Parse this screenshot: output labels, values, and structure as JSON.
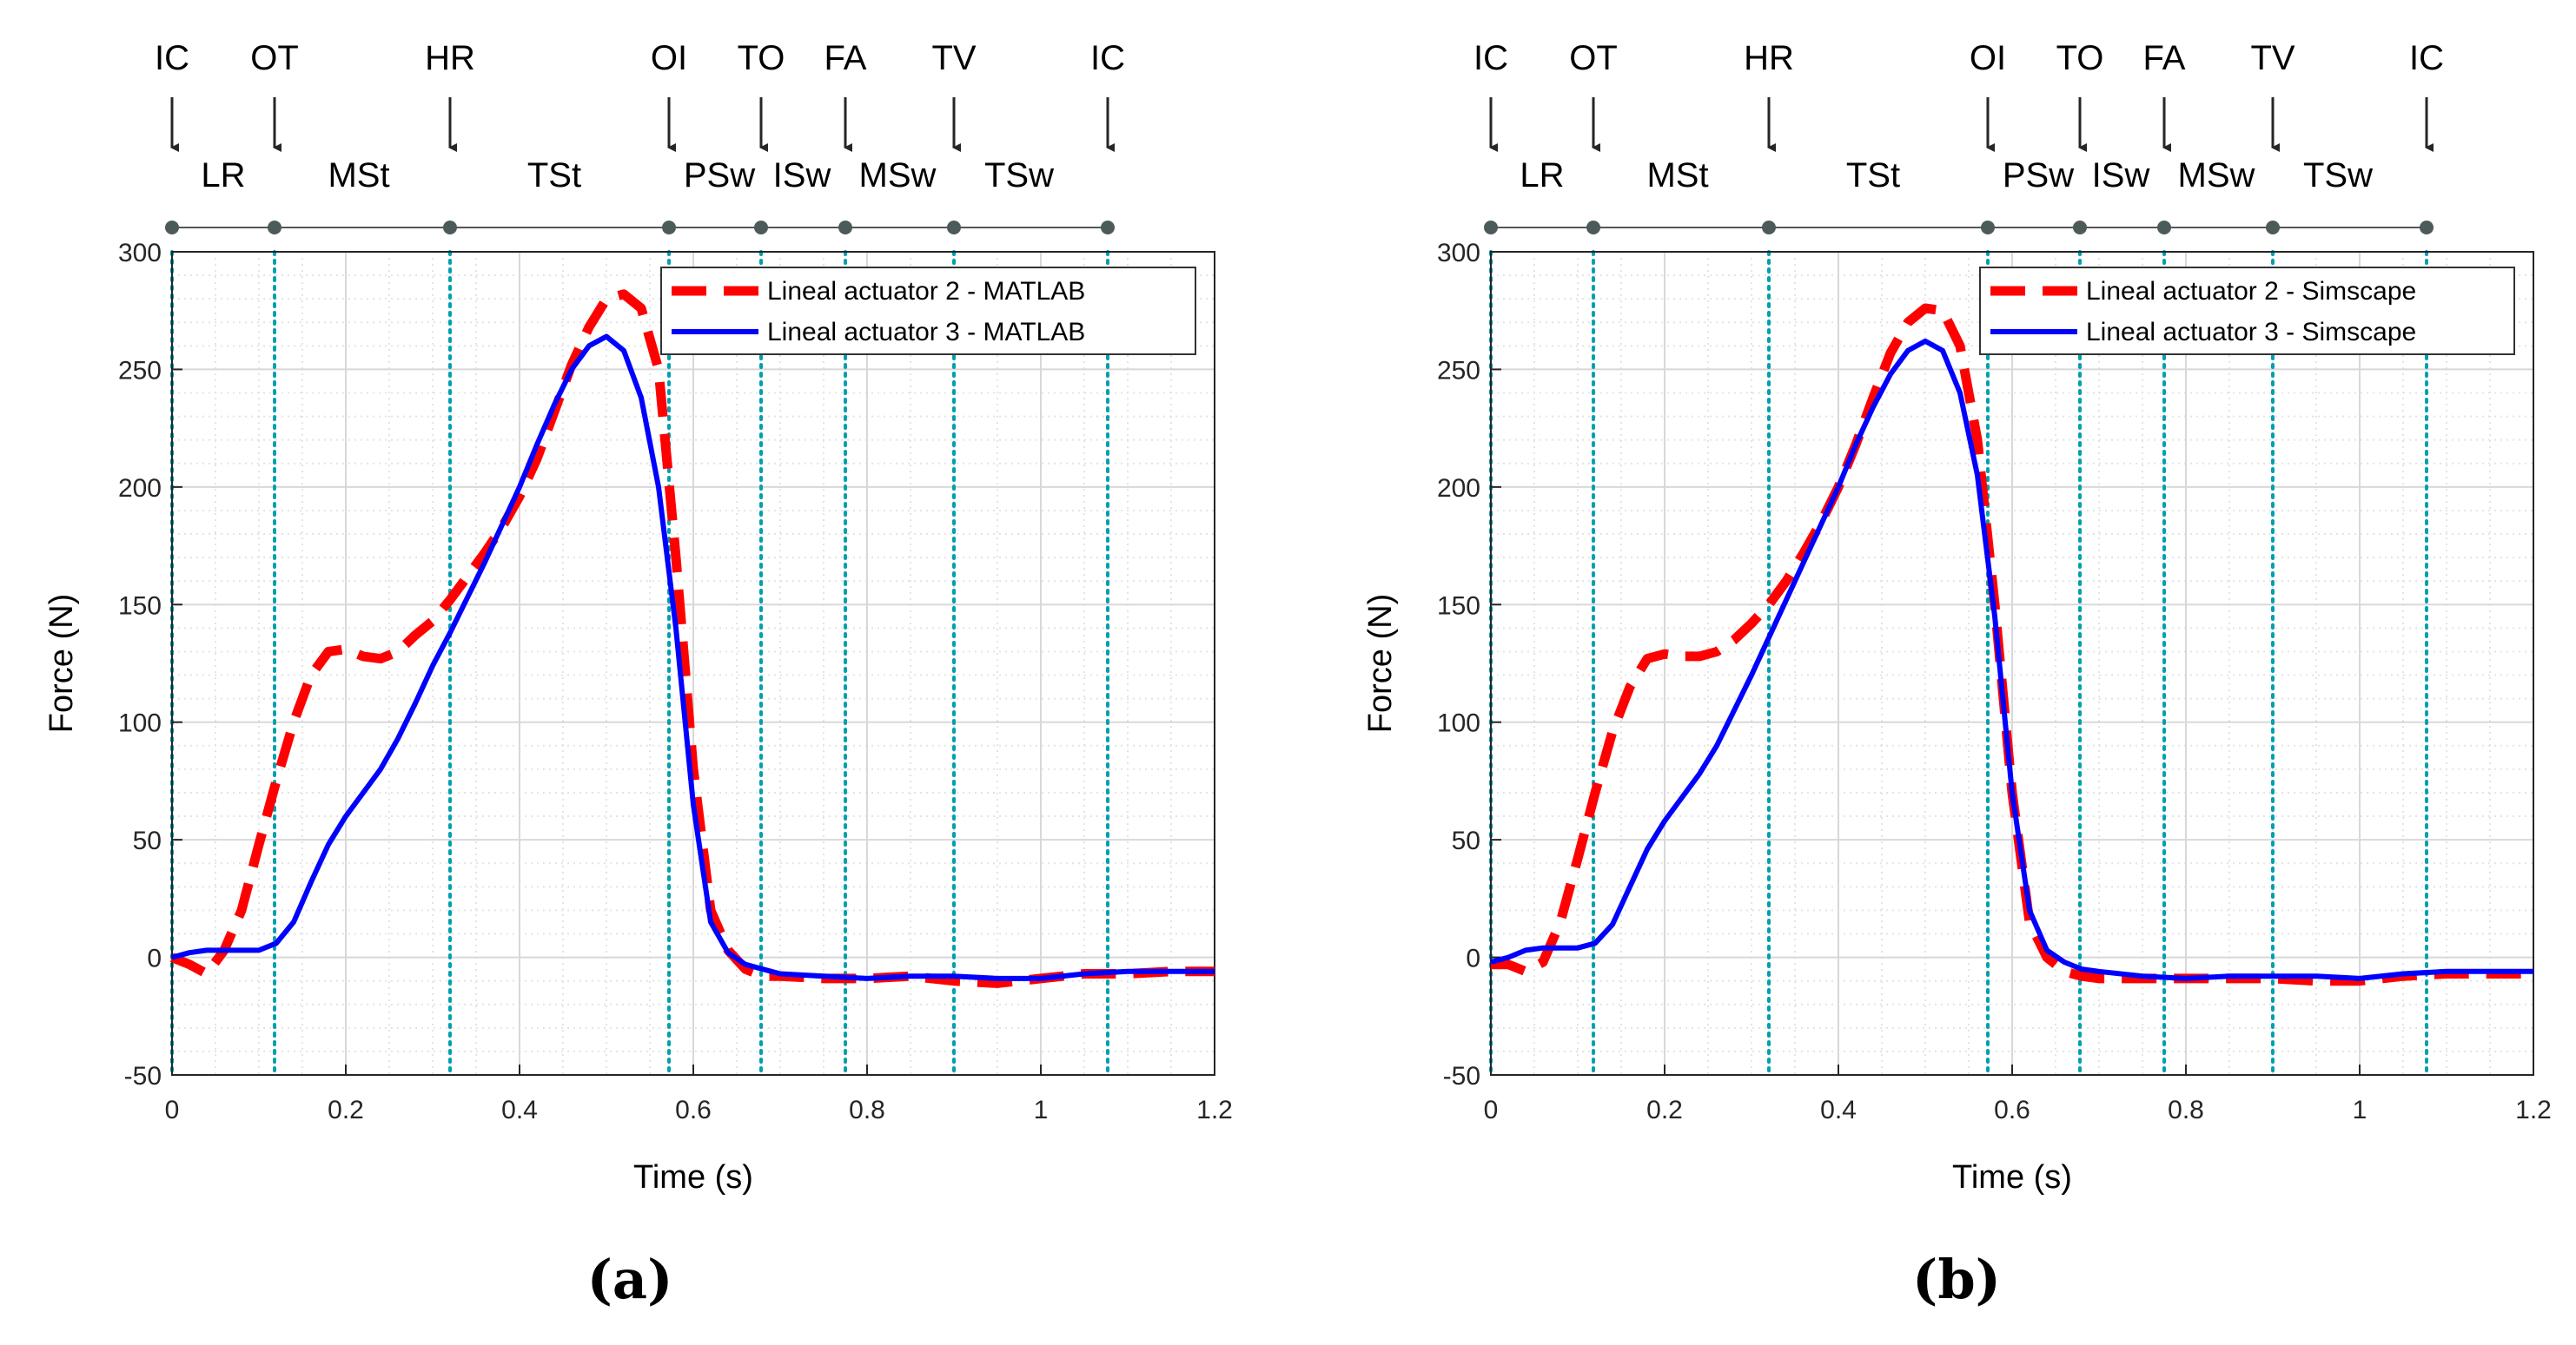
{
  "colors": {
    "series_dashed": "#ff0000",
    "series_solid": "#0000ff",
    "phase_line": "#00a0b0",
    "grid": "#d8d8d8",
    "axis": "#262626",
    "timeline": "#555555"
  },
  "chart_data": [
    {
      "type": "line",
      "caption": "(a)",
      "xlabel": "Time (s)",
      "ylabel": "Force (N)",
      "xlim": [
        0,
        1.2
      ],
      "ylim": [
        -50,
        300
      ],
      "xticks": [
        0,
        0.2,
        0.4,
        0.6,
        0.8,
        1,
        1.2
      ],
      "xtick_labels": [
        "0",
        "0.2",
        "0.4",
        "0.6",
        "0.8",
        "1",
        "1.2"
      ],
      "yticks": [
        -50,
        0,
        50,
        100,
        150,
        200,
        250,
        300
      ],
      "ytick_labels": [
        "-50",
        "0",
        "50",
        "100",
        "150",
        "200",
        "250",
        "300"
      ],
      "grid": true,
      "legend_position": "top-right",
      "events": [
        {
          "label": "IC",
          "t": 0.0
        },
        {
          "label": "OT",
          "t": 0.118
        },
        {
          "label": "HR",
          "t": 0.32
        },
        {
          "label": "OI",
          "t": 0.572
        },
        {
          "label": "TO",
          "t": 0.678
        },
        {
          "label": "FA",
          "t": 0.775
        },
        {
          "label": "TV",
          "t": 0.9
        },
        {
          "label": "IC",
          "t": 1.077
        }
      ],
      "phases": [
        {
          "label": "LR",
          "t": 0.059
        },
        {
          "label": "MSt",
          "t": 0.215
        },
        {
          "label": "TSt",
          "t": 0.44
        },
        {
          "label": "PSw",
          "t": 0.63
        },
        {
          "label": "ISw",
          "t": 0.725
        },
        {
          "label": "MSw",
          "t": 0.835
        },
        {
          "label": "TSw",
          "t": 0.975
        }
      ],
      "series": [
        {
          "name": "Lineal actuator 2 - MATLAB",
          "style": "dashed",
          "x": [
            0,
            0.02,
            0.04,
            0.06,
            0.08,
            0.1,
            0.12,
            0.14,
            0.16,
            0.18,
            0.2,
            0.22,
            0.24,
            0.26,
            0.28,
            0.3,
            0.32,
            0.34,
            0.36,
            0.38,
            0.4,
            0.42,
            0.44,
            0.46,
            0.48,
            0.5,
            0.52,
            0.54,
            0.56,
            0.58,
            0.6,
            0.62,
            0.64,
            0.66,
            0.68,
            0.7,
            0.75,
            0.8,
            0.85,
            0.9,
            0.95,
            1.0,
            1.05,
            1.1,
            1.15,
            1.2
          ],
          "y": [
            0,
            -3,
            -7,
            3,
            20,
            48,
            75,
            100,
            120,
            130,
            131,
            128,
            127,
            130,
            137,
            143,
            152,
            162,
            172,
            183,
            196,
            212,
            232,
            252,
            268,
            280,
            282,
            276,
            250,
            170,
            80,
            20,
            3,
            -5,
            -8,
            -8,
            -9,
            -9,
            -8,
            -10,
            -11,
            -9,
            -7,
            -7,
            -6,
            -6
          ]
        },
        {
          "name": "Lineal actuator 3 - MATLAB",
          "style": "solid",
          "x": [
            0,
            0.02,
            0.04,
            0.06,
            0.08,
            0.1,
            0.12,
            0.14,
            0.16,
            0.18,
            0.2,
            0.22,
            0.24,
            0.26,
            0.28,
            0.3,
            0.32,
            0.34,
            0.36,
            0.38,
            0.4,
            0.42,
            0.44,
            0.46,
            0.48,
            0.5,
            0.52,
            0.54,
            0.56,
            0.58,
            0.6,
            0.62,
            0.64,
            0.66,
            0.68,
            0.7,
            0.75,
            0.8,
            0.85,
            0.9,
            0.95,
            1.0,
            1.05,
            1.1,
            1.15,
            1.2
          ],
          "y": [
            0,
            2,
            3,
            3,
            3,
            3,
            6,
            15,
            32,
            48,
            60,
            70,
            80,
            93,
            108,
            124,
            138,
            153,
            168,
            184,
            200,
            218,
            235,
            250,
            260,
            264,
            258,
            238,
            200,
            140,
            65,
            15,
            2,
            -3,
            -5,
            -7,
            -8,
            -9,
            -8,
            -8,
            -9,
            -9,
            -7,
            -6,
            -6,
            -6
          ]
        }
      ]
    },
    {
      "type": "line",
      "caption": "(b)",
      "xlabel": "Time (s)",
      "ylabel": "Force (N)",
      "xlim": [
        0,
        1.2
      ],
      "ylim": [
        -50,
        300
      ],
      "xticks": [
        0,
        0.2,
        0.4,
        0.6,
        0.8,
        1,
        1.2
      ],
      "xtick_labels": [
        "0",
        "0.2",
        "0.4",
        "0.6",
        "0.8",
        "1",
        "1.2"
      ],
      "yticks": [
        -50,
        0,
        50,
        100,
        150,
        200,
        250,
        300
      ],
      "ytick_labels": [
        "-50",
        "0",
        "50",
        "100",
        "150",
        "200",
        "250",
        "300"
      ],
      "grid": true,
      "legend_position": "top-right",
      "events": [
        {
          "label": "IC",
          "t": 0.0
        },
        {
          "label": "OT",
          "t": 0.118
        },
        {
          "label": "HR",
          "t": 0.32
        },
        {
          "label": "OI",
          "t": 0.572
        },
        {
          "label": "TO",
          "t": 0.678
        },
        {
          "label": "FA",
          "t": 0.775
        },
        {
          "label": "TV",
          "t": 0.9
        },
        {
          "label": "IC",
          "t": 1.077
        }
      ],
      "phases": [
        {
          "label": "LR",
          "t": 0.059
        },
        {
          "label": "MSt",
          "t": 0.215
        },
        {
          "label": "TSt",
          "t": 0.44
        },
        {
          "label": "PSw",
          "t": 0.63
        },
        {
          "label": "ISw",
          "t": 0.725
        },
        {
          "label": "MSw",
          "t": 0.835
        },
        {
          "label": "TSw",
          "t": 0.975
        }
      ],
      "series": [
        {
          "name": "Lineal actuator 2 - Simscape",
          "style": "dashed",
          "x": [
            0,
            0.02,
            0.04,
            0.06,
            0.08,
            0.1,
            0.12,
            0.14,
            0.16,
            0.18,
            0.2,
            0.22,
            0.24,
            0.26,
            0.28,
            0.3,
            0.32,
            0.34,
            0.36,
            0.38,
            0.4,
            0.42,
            0.44,
            0.46,
            0.48,
            0.5,
            0.52,
            0.54,
            0.56,
            0.58,
            0.6,
            0.62,
            0.64,
            0.66,
            0.68,
            0.7,
            0.75,
            0.8,
            0.85,
            0.9,
            0.95,
            1.0,
            1.05,
            1.1,
            1.15,
            1.2
          ],
          "y": [
            -3,
            -3,
            -6,
            -2,
            15,
            42,
            70,
            96,
            115,
            127,
            129,
            128,
            128,
            130,
            135,
            142,
            150,
            160,
            172,
            185,
            200,
            218,
            238,
            257,
            270,
            276,
            275,
            260,
            220,
            150,
            70,
            15,
            0,
            -6,
            -8,
            -9,
            -9,
            -9,
            -9,
            -9,
            -10,
            -10,
            -8,
            -7,
            -7,
            -7
          ]
        },
        {
          "name": "Lineal actuator 3 - Simscape",
          "style": "solid",
          "x": [
            0,
            0.02,
            0.04,
            0.06,
            0.08,
            0.1,
            0.12,
            0.14,
            0.16,
            0.18,
            0.2,
            0.22,
            0.24,
            0.26,
            0.28,
            0.3,
            0.32,
            0.34,
            0.36,
            0.38,
            0.4,
            0.42,
            0.44,
            0.46,
            0.48,
            0.5,
            0.52,
            0.54,
            0.56,
            0.58,
            0.6,
            0.62,
            0.64,
            0.66,
            0.68,
            0.7,
            0.75,
            0.8,
            0.85,
            0.9,
            0.95,
            1.0,
            1.05,
            1.1,
            1.15,
            1.2
          ],
          "y": [
            -2,
            0,
            3,
            4,
            4,
            4,
            6,
            14,
            30,
            46,
            58,
            68,
            78,
            90,
            105,
            120,
            136,
            152,
            168,
            184,
            200,
            218,
            234,
            248,
            258,
            262,
            258,
            240,
            205,
            145,
            70,
            20,
            3,
            -2,
            -5,
            -6,
            -8,
            -9,
            -8,
            -8,
            -8,
            -9,
            -7,
            -6,
            -6,
            -6
          ]
        }
      ]
    }
  ]
}
